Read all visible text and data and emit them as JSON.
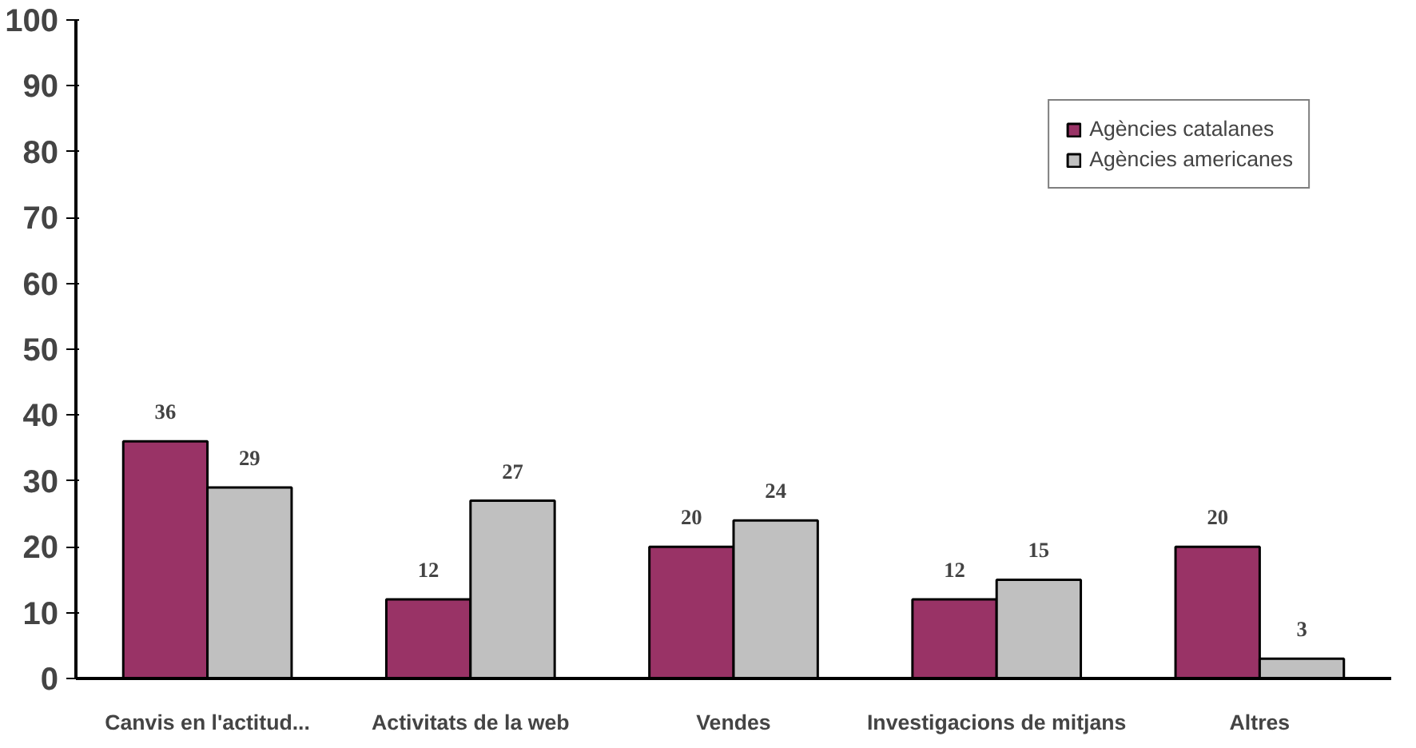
{
  "chart_data": {
    "type": "bar",
    "categories": [
      "Canvis en l'actitud...",
      "Activitats de la web",
      "Vendes",
      "Investigacions de mitjans",
      "Altres"
    ],
    "series": [
      {
        "name": "Agències catalanes",
        "color": "#993366",
        "values": [
          36,
          12,
          20,
          12,
          20
        ]
      },
      {
        "name": "Agències americanes",
        "color": "#c0c0c0",
        "values": [
          29,
          27,
          24,
          15,
          3
        ]
      }
    ],
    "ylim": [
      0,
      100
    ],
    "yticks": [
      0,
      10,
      20,
      30,
      40,
      50,
      60,
      70,
      80,
      90,
      100
    ],
    "grid": false,
    "legend": "top right",
    "data_labels": true
  }
}
